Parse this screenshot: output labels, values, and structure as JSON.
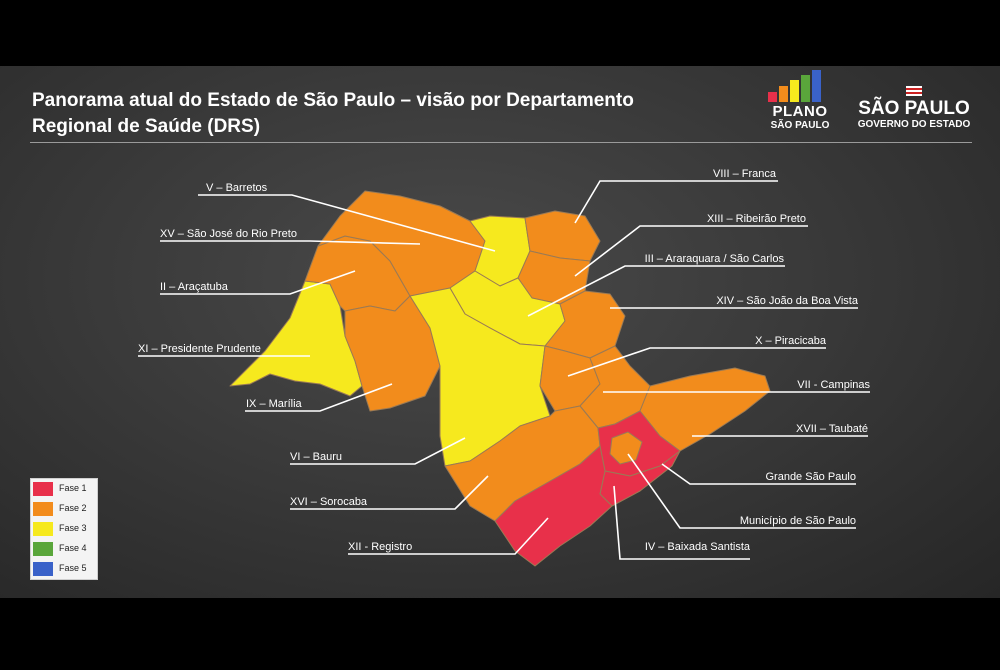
{
  "title": {
    "line1": "Panorama atual do Estado de São Paulo – visão por Departamento",
    "line2": "Regional de Saúde (DRS)"
  },
  "logo_plano": {
    "line1": "PLANO",
    "line2": "SÃO PAULO"
  },
  "logo_sp": {
    "line1": "SÃO PAULO",
    "line2": "GOVERNO DO ESTADO"
  },
  "colors": {
    "fase1": "#e8304a",
    "fase2": "#f28c1c",
    "fase3": "#f6e91e",
    "fase4": "#5aa63b",
    "fase5": "#3a62c9"
  },
  "legend": [
    {
      "label": "Fase 1",
      "color": "#e8304a"
    },
    {
      "label": "Fase 2",
      "color": "#f28c1c"
    },
    {
      "label": "Fase 3",
      "color": "#f6e91e"
    },
    {
      "label": "Fase 4",
      "color": "#5aa63b"
    },
    {
      "label": "Fase 5",
      "color": "#3a62c9"
    }
  ],
  "regions": {
    "barretos": {
      "label": "V – Barretos",
      "fase": 3
    },
    "rio_preto": {
      "label": "XV – São José do Rio Preto",
      "fase": 2
    },
    "aracatuba": {
      "label": "II – Araçatuba",
      "fase": 2
    },
    "pres_prudente": {
      "label": "XI – Presidente Prudente",
      "fase": 3
    },
    "marilia": {
      "label": "IX – Marília",
      "fase": 2
    },
    "bauru": {
      "label": "VI – Bauru",
      "fase": 3
    },
    "sorocaba": {
      "label": "XVI – Sorocaba",
      "fase": 2
    },
    "registro": {
      "label": "XII - Registro",
      "fase": 1
    },
    "franca": {
      "label": "VIII – Franca",
      "fase": 2
    },
    "ribeirao": {
      "label": "XIII – Ribeirão Preto",
      "fase": 2
    },
    "araraquara": {
      "label": "III – Araraquara / São Carlos",
      "fase": 3
    },
    "sao_joao": {
      "label": "XIV – São João da Boa Vista",
      "fase": 2
    },
    "piracicaba": {
      "label": "X – Piracicaba",
      "fase": 2
    },
    "campinas": {
      "label": "VII - Campinas",
      "fase": 2
    },
    "taubate": {
      "label": "XVII – Taubaté",
      "fase": 2
    },
    "grande_sp": {
      "label": "Grande São Paulo",
      "fase": 1
    },
    "municipio_sp": {
      "label": "Município de São Paulo",
      "fase": 2
    },
    "baixada": {
      "label": "IV – Baixada Santista",
      "fase": 1
    }
  }
}
